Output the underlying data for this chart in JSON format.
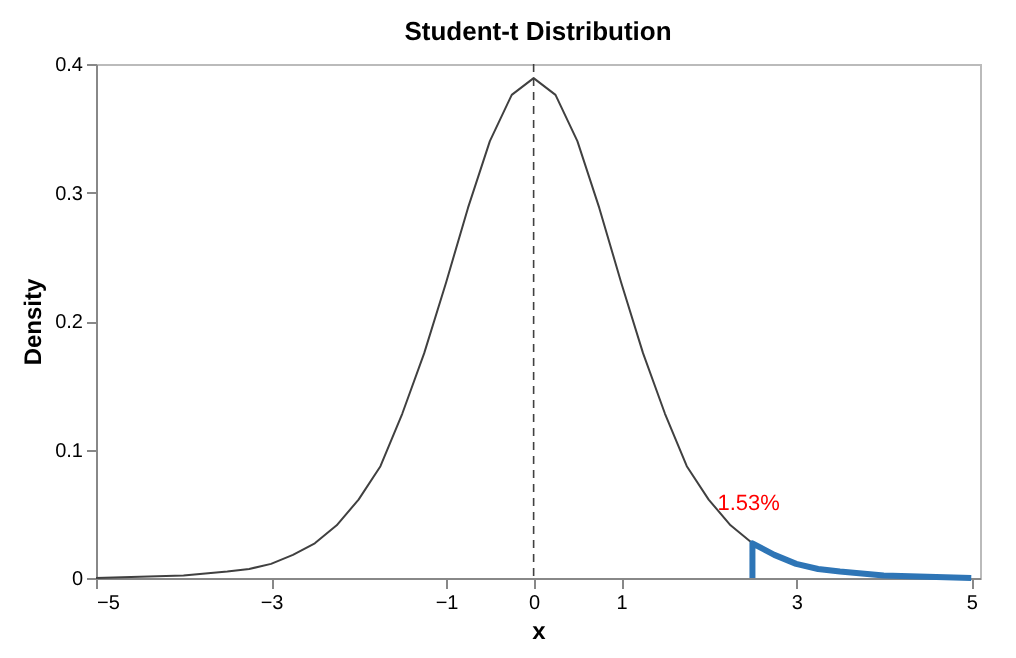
{
  "chart_data": {
    "type": "line",
    "title": "Student-t Distribution",
    "xlabel": "x",
    "ylabel": "Density",
    "series": [
      {
        "color": "#404040",
        "x": [
          -5,
          -4.5,
          -4,
          -3.5,
          -3.25,
          -3,
          -2.75,
          -2.5,
          -2.25,
          -2,
          -1.75,
          -1.5,
          -1.25,
          -1,
          -0.75,
          -0.5,
          -0.25,
          0,
          0.25,
          0.5,
          0.75,
          1,
          1.25,
          1.5,
          1.75,
          2,
          2.25,
          2.5
        ],
        "values": [
          0,
          0.001,
          0.002,
          0.005,
          0.007,
          0.011,
          0.018,
          0.027,
          0.041,
          0.061,
          0.087,
          0.128,
          0.175,
          0.23,
          0.288,
          0.34,
          0.376,
          0.389,
          0.376,
          0.34,
          0.288,
          0.23,
          0.175,
          0.128,
          0.087,
          0.061,
          0.041,
          0.027
        ]
      },
      {
        "color": "#2e75b6",
        "x": [
          2.5,
          2.5,
          2.75,
          3,
          3.25,
          3.5,
          4,
          4.5,
          5
        ],
        "values": [
          0,
          0.027,
          0.018,
          0.011,
          0.007,
          0.005,
          0.002,
          0.001,
          0
        ]
      }
    ],
    "annotations": [
      {
        "text": "1.53%",
        "x": 2.1,
        "y": 0.05
      }
    ],
    "ref_lines": [
      {
        "axis": "x",
        "value": 0,
        "color": "#404040",
        "line_style": "dashed"
      }
    ],
    "xlim": [
      -5,
      5.1
    ],
    "xticks": [
      -5,
      -3,
      -1,
      0,
      1,
      3,
      5
    ],
    "ylim": [
      0,
      0.4
    ],
    "yticks": [
      0,
      0.1,
      0.2,
      0.3,
      0.4
    ],
    "grid": false,
    "marker": "none",
    "line_style": "solid"
  }
}
